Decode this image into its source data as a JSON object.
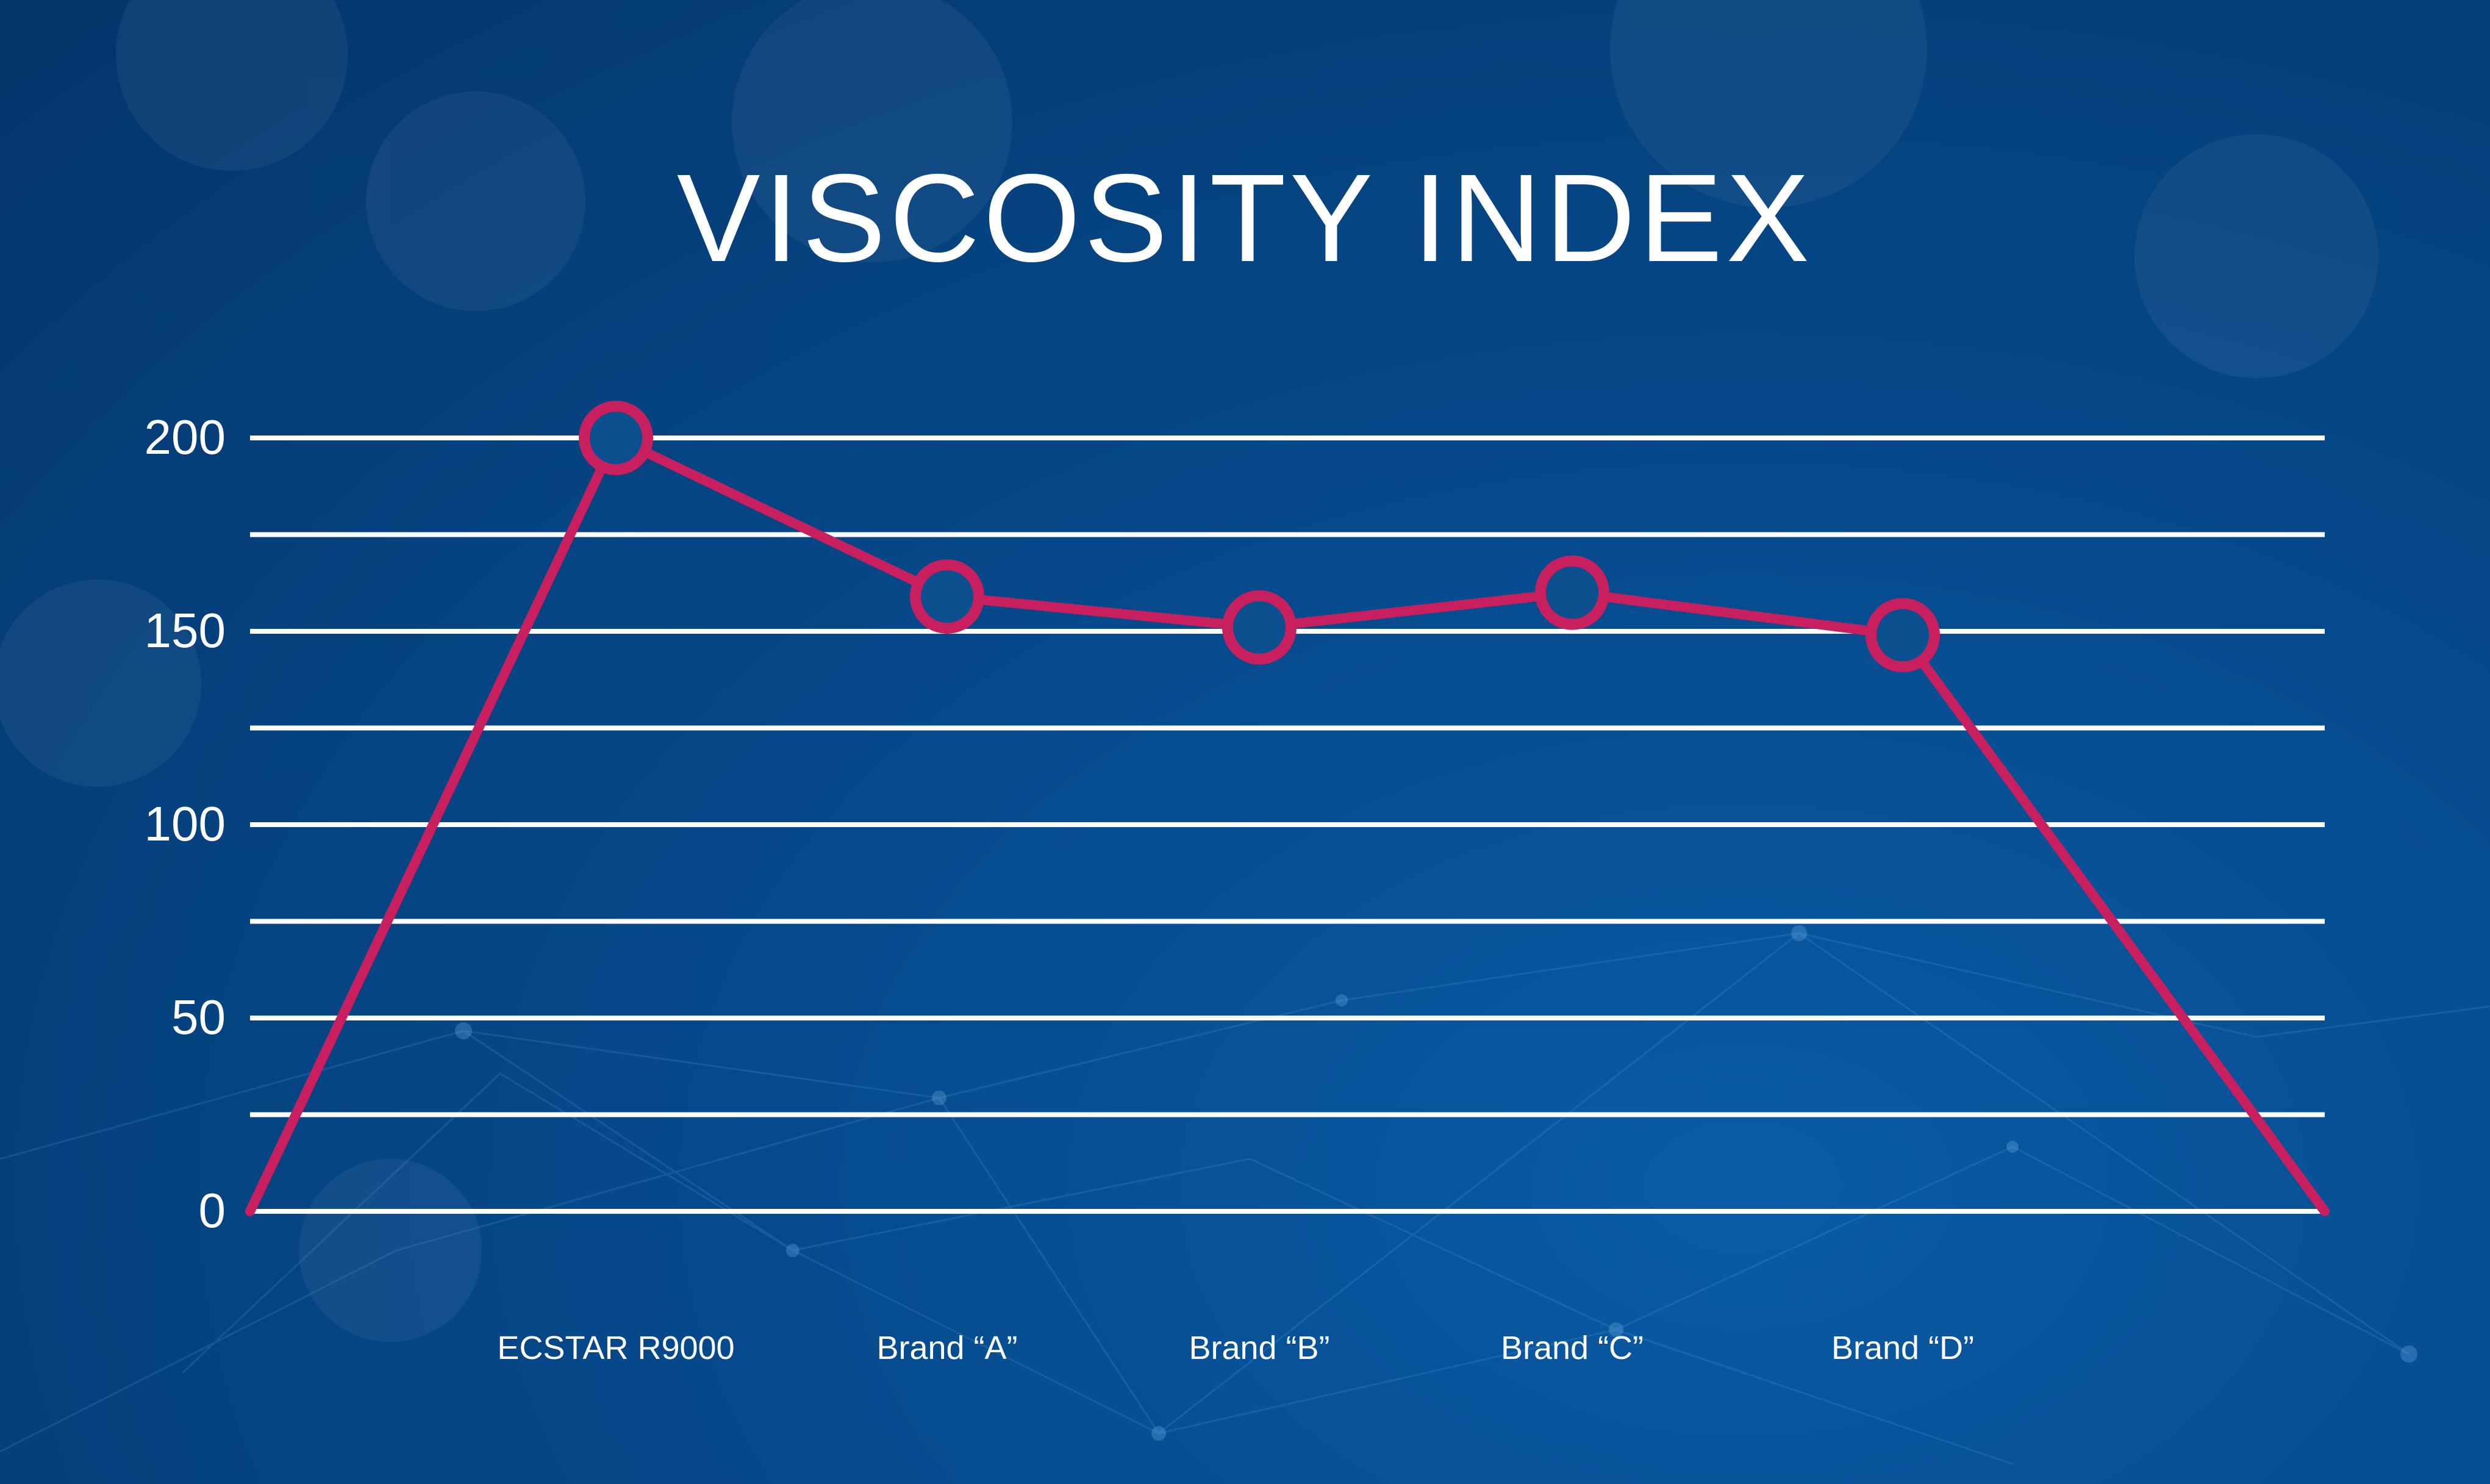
{
  "chart_data": {
    "type": "line",
    "title": "VISCOSITY INDEX",
    "xlabel": "",
    "ylabel": "",
    "categories": [
      "",
      "ECSTAR R9000",
      "Brand “A”",
      "Brand “B”",
      "Brand “C”",
      "Brand “D”",
      ""
    ],
    "series": [
      {
        "values": [
          0,
          200,
          159,
          151,
          160,
          149,
          0
        ]
      }
    ],
    "ylim": [
      0,
      200
    ],
    "yticks": [
      0,
      50,
      100,
      150,
      200
    ],
    "grid": true,
    "colors": {
      "line": "#c81f5e",
      "marker_fill": "#0b4f8f",
      "grid": "#ffffff",
      "background": "#054584",
      "text": "#ffffff"
    }
  }
}
